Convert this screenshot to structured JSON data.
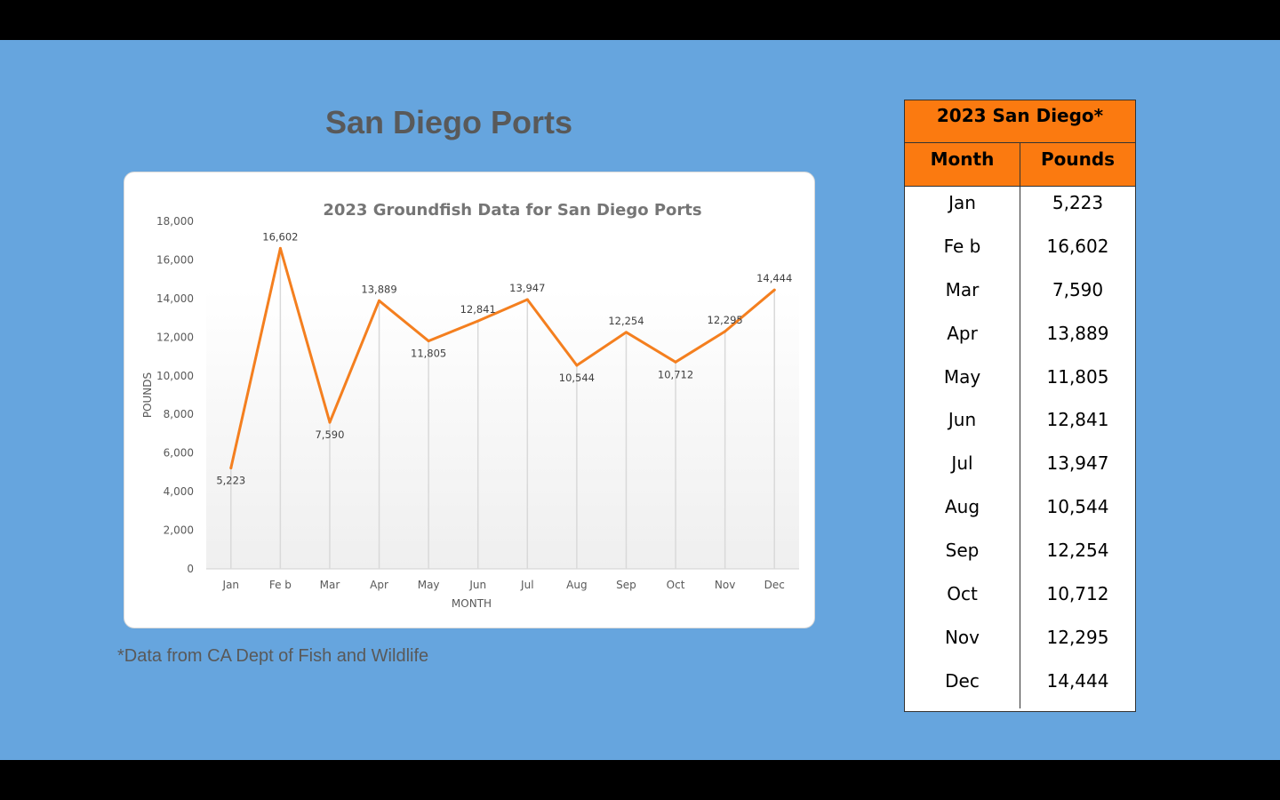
{
  "slide": {
    "title": "San Diego Ports",
    "footnote": "*Data from CA Dept of Fish and Wildlife",
    "background": "#66a5de"
  },
  "table": {
    "caption": "2023 San Diego*",
    "headers": [
      "Month",
      "Pounds"
    ],
    "header_color": "#fb7a10",
    "rows": [
      {
        "month": "Jan",
        "pounds": "5,223"
      },
      {
        "month": "Fe b",
        "pounds": "16,602"
      },
      {
        "month": "Mar",
        "pounds": "7,590"
      },
      {
        "month": "Apr",
        "pounds": "13,889"
      },
      {
        "month": "May",
        "pounds": "11,805"
      },
      {
        "month": "Jun",
        "pounds": "12,841"
      },
      {
        "month": "Jul",
        "pounds": "13,947"
      },
      {
        "month": "Aug",
        "pounds": "10,544"
      },
      {
        "month": "Sep",
        "pounds": "12,254"
      },
      {
        "month": "Oct",
        "pounds": "10,712"
      },
      {
        "month": "Nov",
        "pounds": "12,295"
      },
      {
        "month": "Dec",
        "pounds": "14,444"
      }
    ]
  },
  "chart_data": {
    "type": "line",
    "title": "2023 Groundfish Data for San Diego Ports",
    "xlabel": "MONTH",
    "ylabel": "POUNDS",
    "categories": [
      "Jan",
      "Fe b",
      "Mar",
      "Apr",
      "May",
      "Jun",
      "Jul",
      "Aug",
      "Sep",
      "Oct",
      "Nov",
      "Dec"
    ],
    "series": [
      {
        "values": [
          5223,
          16602,
          7590,
          13889,
          11805,
          12841,
          13947,
          10544,
          12254,
          10712,
          12295,
          14444
        ],
        "color": "#f47f1f"
      }
    ],
    "data_labels": [
      "5,223",
      "16,602",
      "7,590",
      "13,889",
      "11,805",
      "12,841",
      "13,947",
      "10,544",
      "12,254",
      "10,712",
      "12,295",
      "14,444"
    ],
    "ylim": [
      0,
      18000
    ],
    "yticks": [
      "0",
      "2,000",
      "4,000",
      "6,000",
      "8,000",
      "10,000",
      "12,000",
      "14,000",
      "16,000",
      "18,000"
    ],
    "drop_lines": true,
    "grid": false,
    "legend": "none"
  }
}
